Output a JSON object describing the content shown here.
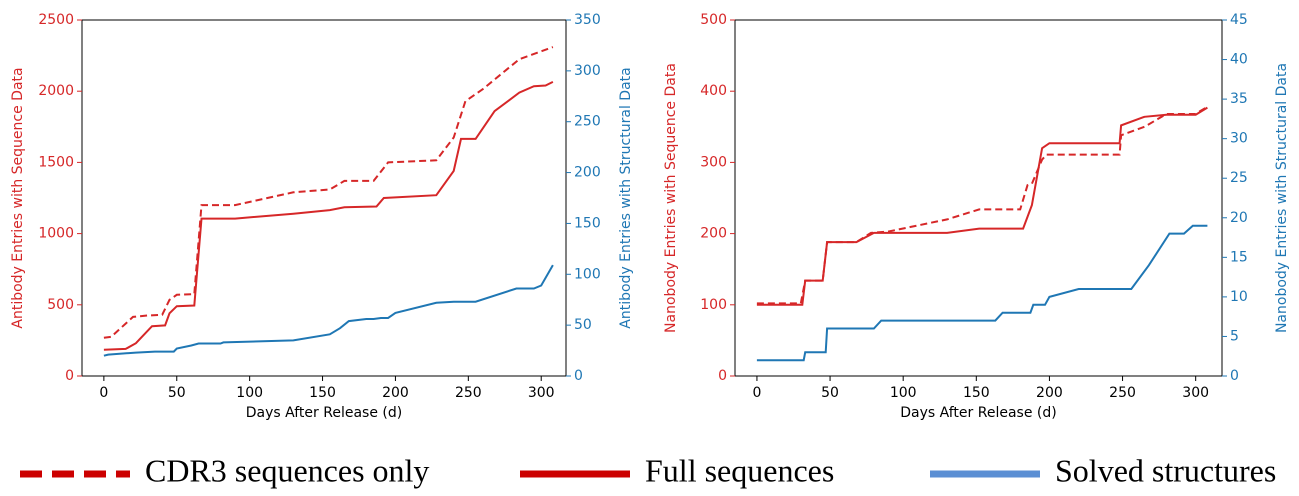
{
  "legend": [
    {
      "name": "CDR3 sequences only",
      "color": "#cc0000",
      "style": "dashed"
    },
    {
      "name": "Full sequences",
      "color": "#cc0000",
      "style": "solid"
    },
    {
      "name": "Solved structures",
      "color": "#5b8fd4",
      "style": "solid"
    }
  ],
  "chart_data": [
    {
      "type": "line",
      "xlabel": "Days After Release (d)",
      "ylabel": "Antibody Entries with Sequence Data",
      "y2label": "Antibody Entries with Structural Data",
      "xlim": [
        -15,
        317
      ],
      "xticks": [
        0,
        50,
        100,
        150,
        200,
        250,
        300
      ],
      "ylim": [
        0,
        2500
      ],
      "yticks": [
        0,
        500,
        1000,
        1500,
        2000,
        2500
      ],
      "ycolor": "#d62728",
      "y2lim": [
        0,
        350
      ],
      "y2ticks": [
        0,
        50,
        100,
        150,
        200,
        250,
        300,
        350
      ],
      "y2color": "#1f77b4",
      "series": [
        {
          "color": "#d62728",
          "style": "dashed",
          "x": [
            0,
            5,
            20,
            30,
            40,
            45,
            50,
            62,
            67,
            90,
            130,
            155,
            165,
            185,
            195,
            228,
            240,
            248,
            260,
            285,
            300,
            308
          ],
          "values": [
            268,
            275,
            415,
            425,
            430,
            535,
            570,
            575,
            1200,
            1200,
            1290,
            1310,
            1370,
            1370,
            1500,
            1515,
            1675,
            1930,
            2015,
            2225,
            2280,
            2310
          ]
        },
        {
          "color": "#d62728",
          "style": "solid",
          "x": [
            0,
            15,
            22,
            33,
            42,
            45,
            50,
            62,
            67,
            90,
            130,
            155,
            165,
            187,
            192,
            228,
            240,
            245,
            255,
            268,
            285,
            295,
            303,
            308
          ],
          "values": [
            185,
            190,
            230,
            350,
            355,
            440,
            490,
            495,
            1105,
            1105,
            1140,
            1165,
            1185,
            1190,
            1250,
            1270,
            1440,
            1665,
            1665,
            1860,
            1990,
            2035,
            2040,
            2065
          ]
        },
        {
          "color": "#1f77b4",
          "style": "solid",
          "axis": "y2",
          "x": [
            0,
            3,
            22,
            35,
            48,
            50,
            60,
            65,
            80,
            82,
            130,
            155,
            162,
            168,
            180,
            185,
            190,
            195,
            200,
            228,
            240,
            255,
            283,
            295,
            300,
            308
          ],
          "values": [
            20,
            21,
            23,
            24,
            24,
            27,
            30,
            32,
            32,
            33,
            35,
            41,
            47,
            54,
            56,
            56,
            57,
            57,
            62,
            72,
            73,
            73,
            86,
            86,
            89,
            109
          ]
        }
      ]
    },
    {
      "type": "line",
      "xlabel": "Days After Release (d)",
      "ylabel": "Nanobody Entries with Sequence Data",
      "y2label": "Nanobody Entries with Structural Data",
      "xlim": [
        -15,
        318
      ],
      "xticks": [
        0,
        50,
        100,
        150,
        200,
        250,
        300
      ],
      "ylim": [
        0,
        500
      ],
      "yticks": [
        0,
        100,
        200,
        300,
        400,
        500
      ],
      "ycolor": "#d62728",
      "y2lim": [
        0,
        45
      ],
      "y2ticks": [
        0,
        5,
        10,
        15,
        20,
        25,
        30,
        35,
        40,
        45
      ],
      "y2color": "#1f77b4",
      "series": [
        {
          "color": "#d62728",
          "style": "dashed",
          "x": [
            0,
            30,
            33,
            45,
            48,
            68,
            78,
            90,
            130,
            152,
            180,
            185,
            188,
            195,
            198,
            248,
            249,
            265,
            280,
            300,
            303,
            308
          ],
          "values": [
            102,
            102,
            134,
            134,
            188,
            188,
            201,
            203,
            220,
            234,
            234,
            268,
            270,
            304,
            311,
            311,
            338,
            350,
            368,
            368,
            372,
            378
          ]
        },
        {
          "color": "#d62728",
          "style": "solid",
          "x": [
            0,
            31,
            33,
            45,
            48,
            68,
            80,
            130,
            152,
            182,
            188,
            195,
            200,
            248,
            249,
            265,
            280,
            300,
            308
          ],
          "values": [
            100,
            100,
            134,
            134,
            188,
            188,
            201,
            201,
            207,
            207,
            240,
            320,
            327,
            327,
            352,
            364,
            367,
            367,
            377
          ]
        },
        {
          "color": "#1f77b4",
          "style": "solid",
          "axis": "y2",
          "x": [
            0,
            32,
            33,
            47,
            48,
            80,
            85,
            163,
            168,
            187,
            189,
            197,
            200,
            220,
            256,
            268,
            282,
            292,
            298,
            308
          ],
          "values": [
            2,
            2,
            3,
            3,
            6,
            6,
            7,
            7,
            8,
            8,
            9,
            9,
            10,
            11,
            11,
            14,
            18,
            18,
            19,
            19
          ]
        }
      ]
    }
  ]
}
